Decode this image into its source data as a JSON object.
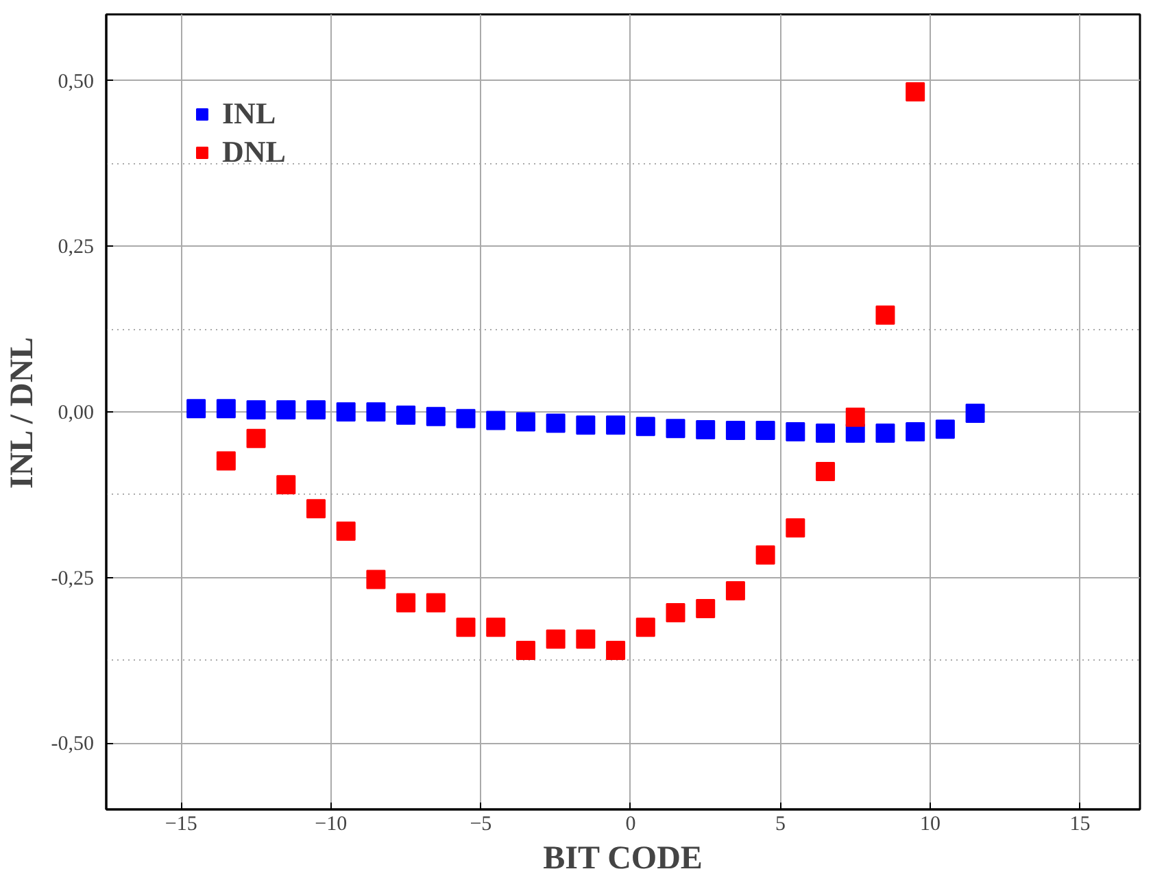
{
  "chart_data": {
    "type": "scatter",
    "xlabel": "BIT CODE",
    "ylabel": "INL / DNL",
    "xlim": [
      -17.5,
      17
    ],
    "ylim": [
      -0.6,
      0.6
    ],
    "xticks": [
      -15,
      -10,
      -5,
      0,
      5,
      10,
      15
    ],
    "yticks": [
      {
        "value": -0.5,
        "label": "-0,50"
      },
      {
        "value": -0.25,
        "label": "-0,25"
      },
      {
        "value": 0,
        "label": "0,00"
      },
      {
        "value": 0.25,
        "label": "0,25"
      },
      {
        "value": 0.5,
        "label": "0,50"
      }
    ],
    "grid": true,
    "legend": "top left",
    "marker": "square",
    "series": [
      {
        "name": "INL",
        "color": "#0000ff",
        "x": [
          -14.5,
          -13.5,
          -12.5,
          -11.5,
          -10.5,
          -9.5,
          -8.5,
          -7.5,
          -6.5,
          -5.5,
          -4.5,
          -3.5,
          -2.5,
          -1.5,
          -0.5,
          0.5,
          1.5,
          2.5,
          3.5,
          4.5,
          5.5,
          6.5,
          7.5,
          8.5,
          9.5,
          10.5,
          11.5
        ],
        "values": [
          0.005,
          0.005,
          0.003,
          0.003,
          0.003,
          0,
          0,
          -0.005,
          -0.007,
          -0.01,
          -0.013,
          -0.015,
          -0.017,
          -0.02,
          -0.02,
          -0.022,
          -0.025,
          -0.027,
          -0.028,
          -0.028,
          -0.03,
          -0.032,
          -0.032,
          -0.032,
          -0.03,
          -0.026,
          -0.002
        ]
      },
      {
        "name": "DNL",
        "color": "#ff0000",
        "x": [
          -13.5,
          -12.5,
          -11.5,
          -10.5,
          -9.5,
          -8.5,
          -7.5,
          -6.5,
          -5.5,
          -4.5,
          -3.5,
          -2.5,
          -1.5,
          -0.5,
          0.5,
          1.5,
          2.5,
          3.5,
          4.5,
          5.5,
          6.5,
          7.5,
          8.5,
          9.5
        ],
        "values": [
          -0.074,
          -0.04,
          -0.11,
          -0.146,
          -0.18,
          -0.253,
          -0.288,
          -0.288,
          -0.325,
          -0.325,
          -0.36,
          -0.343,
          -0.343,
          -0.36,
          -0.325,
          -0.303,
          -0.297,
          -0.27,
          -0.216,
          -0.175,
          -0.09,
          -0.008,
          0.146,
          0.483
        ]
      }
    ]
  }
}
